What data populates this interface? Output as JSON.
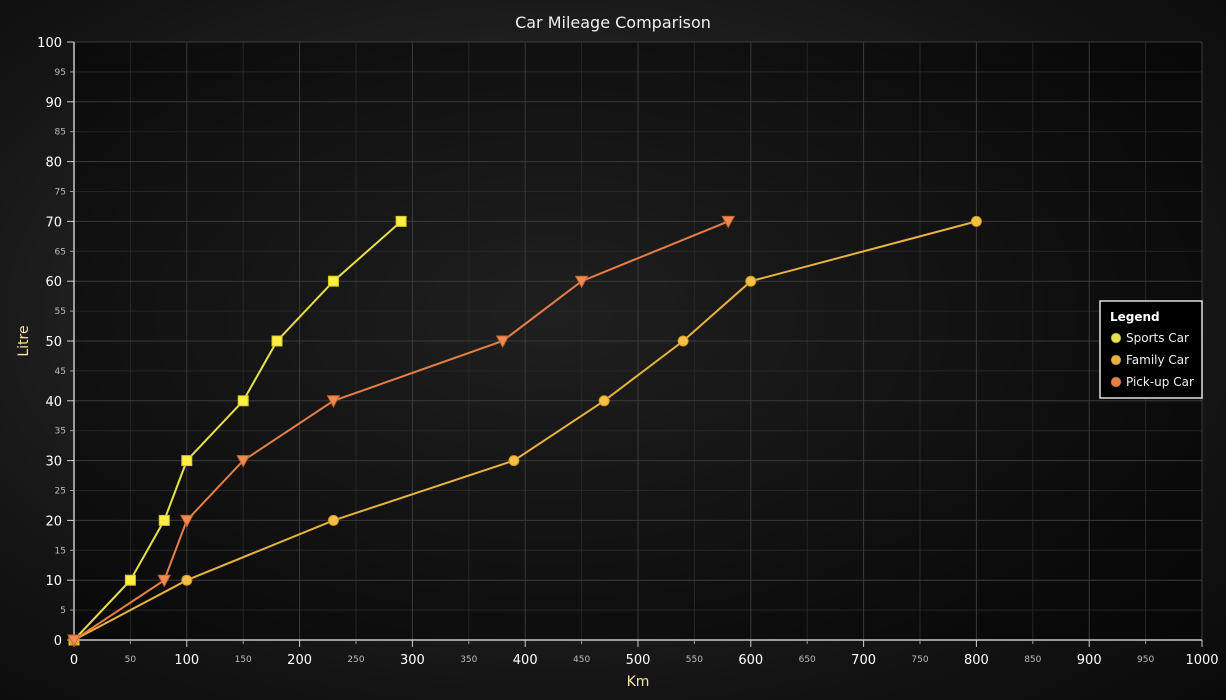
{
  "chart_data": {
    "type": "line",
    "title": "Car Mileage Comparison",
    "xlabel": "Km",
    "ylabel": "Litre",
    "xlim": [
      0,
      1000
    ],
    "ylim": [
      0,
      100
    ],
    "x_major_ticks": [
      "0",
      "100",
      "200",
      "300",
      "400",
      "500",
      "600",
      "700",
      "800",
      "900",
      "1000"
    ],
    "x_minor_ticks": [
      "50",
      "150",
      "250",
      "350",
      "450",
      "550",
      "650",
      "750",
      "850",
      "950"
    ],
    "y_major_ticks": [
      "0",
      "10",
      "20",
      "30",
      "40",
      "50",
      "60",
      "70",
      "80",
      "90",
      "100"
    ],
    "y_minor_ticks": [
      "5",
      "15",
      "25",
      "35",
      "45",
      "55",
      "65",
      "75",
      "85",
      "95"
    ],
    "grid": true,
    "legend": {
      "title": "Legend",
      "placement": "right"
    },
    "series": [
      {
        "name": "Sports Car",
        "color": "#e6e04a",
        "marker": "square",
        "points": [
          [
            0,
            0
          ],
          [
            50,
            10
          ],
          [
            80,
            20
          ],
          [
            100,
            30
          ],
          [
            150,
            40
          ],
          [
            180,
            50
          ],
          [
            230,
            60
          ],
          [
            290,
            70
          ]
        ]
      },
      {
        "name": "Family Car",
        "color": "#e8b23c",
        "marker": "circle",
        "points": [
          [
            0,
            0
          ],
          [
            100,
            10
          ],
          [
            230,
            20
          ],
          [
            390,
            30
          ],
          [
            470,
            40
          ],
          [
            540,
            50
          ],
          [
            600,
            60
          ],
          [
            800,
            70
          ]
        ]
      },
      {
        "name": "Pick-up Car",
        "color": "#e67e45",
        "marker": "triangle-down",
        "points": [
          [
            0,
            0
          ],
          [
            80,
            10
          ],
          [
            100,
            20
          ],
          [
            150,
            30
          ],
          [
            230,
            40
          ],
          [
            380,
            50
          ],
          [
            450,
            60
          ],
          [
            580,
            70
          ]
        ]
      }
    ]
  }
}
